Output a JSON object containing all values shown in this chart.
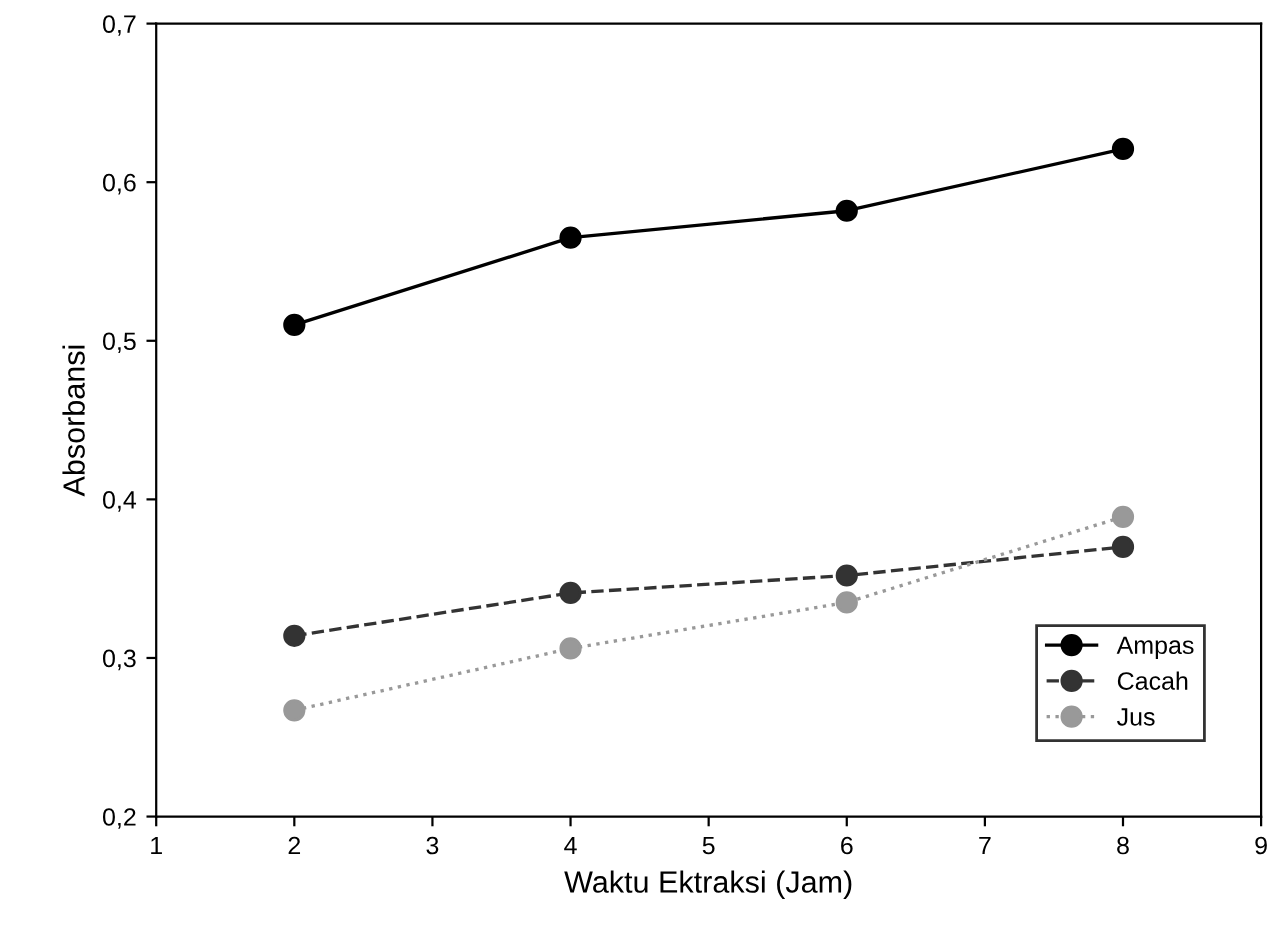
{
  "chart_data": {
    "type": "line",
    "xlabel": "Waktu Ektraksi (Jam)",
    "ylabel": "Absorbansi",
    "x": [
      2,
      4,
      6,
      8
    ],
    "series": [
      {
        "name": "Ampas",
        "color": "#000000",
        "values": [
          0.51,
          0.565,
          0.582,
          0.621
        ],
        "marker": "circle",
        "line_style": "solid"
      },
      {
        "name": "Cacah",
        "color": "#333333",
        "values": [
          0.314,
          0.341,
          0.352,
          0.37
        ],
        "marker": "circle",
        "line_style": "dashed"
      },
      {
        "name": "Jus",
        "color": "#999999",
        "values": [
          0.267,
          0.306,
          0.335,
          0.389
        ],
        "marker": "circle",
        "line_style": "dotted"
      }
    ],
    "xlim": [
      1,
      9
    ],
    "xticks": [
      1,
      2,
      3,
      4,
      5,
      6,
      7,
      8,
      9
    ],
    "ylim": [
      0.2,
      0.7
    ],
    "yticks": [
      {
        "value": 0.2,
        "label": "0,2"
      },
      {
        "value": 0.3,
        "label": "0,3"
      },
      {
        "value": 0.4,
        "label": "0,4"
      },
      {
        "value": 0.5,
        "label": "0,5"
      },
      {
        "value": 0.6,
        "label": "0,6"
      },
      {
        "value": 0.7,
        "label": "0,7"
      }
    ],
    "grid": false,
    "legend": "bottom right"
  }
}
